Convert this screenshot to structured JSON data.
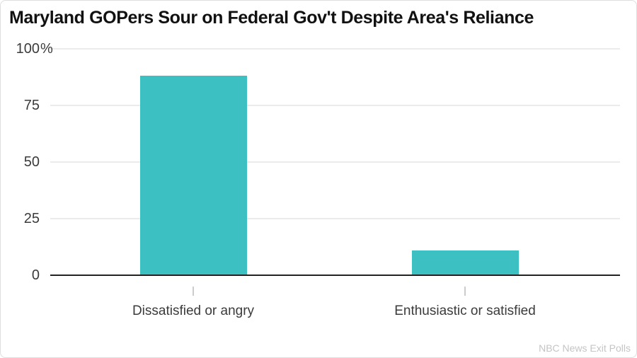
{
  "header": {
    "title": "Maryland GOPers Sour on Federal Gov't Despite Area's Reliance"
  },
  "footer": {
    "attribution": "NBC News Exit Polls"
  },
  "colors": {
    "bar": "#3cc0c2",
    "gridline": "#ebebeb",
    "axis_line": "#222222",
    "label_text": "#3b3b3b",
    "title_text": "#111111",
    "muted_text": "#c4c4c4"
  },
  "chart_data": {
    "type": "bar",
    "title": "Maryland GOPers Sour on Federal Gov't Despite Area's Reliance",
    "categories": [
      "Dissatisfied or angry",
      "Enthusiastic or satisfied"
    ],
    "values": [
      88,
      11
    ],
    "value_unit": "percent",
    "xlabel": "",
    "ylabel": "",
    "ylim": [
      0,
      100
    ],
    "yticks": [
      {
        "value": 0,
        "label": "0"
      },
      {
        "value": 25,
        "label": "25"
      },
      {
        "value": 50,
        "label": "50"
      },
      {
        "value": 75,
        "label": "75"
      },
      {
        "value": 100,
        "label": "100",
        "suffix": "%"
      }
    ],
    "grid": true,
    "legend": false,
    "bar_color": "#3cc0c2",
    "source": "NBC News Exit Polls"
  }
}
